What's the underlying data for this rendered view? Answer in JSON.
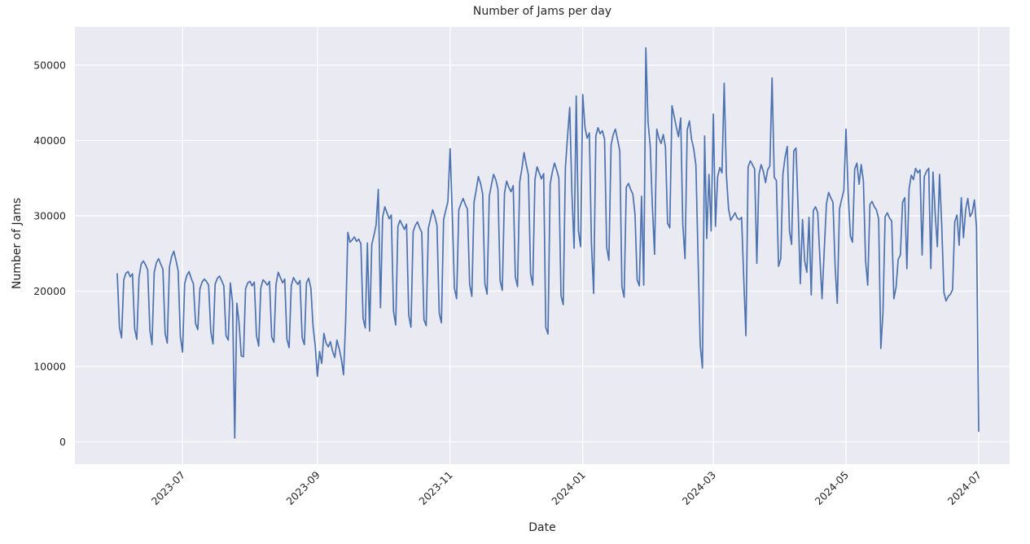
{
  "title": "Number of Jams per day",
  "xlabel": "Date",
  "ylabel": "Number of Jams",
  "chart_data": {
    "type": "line",
    "title": "Number of Jams per day",
    "xlabel": "Date",
    "ylabel": "Number of Jams",
    "legend": "none",
    "grid": "on",
    "style": {
      "line_color": "#4c72b0",
      "plot_bg": "#eaeaf2",
      "grid_color": "#ffffff",
      "text_color": "#262626"
    },
    "ylim": [
      -3000,
      55100
    ],
    "y_ticks": [
      0,
      10000,
      20000,
      30000,
      40000,
      50000
    ],
    "x_ticks": [
      {
        "label": "2023-07",
        "day": 30
      },
      {
        "label": "2023-09",
        "day": 92
      },
      {
        "label": "2023-11",
        "day": 153
      },
      {
        "label": "2024-01",
        "day": 214
      },
      {
        "label": "2024-03",
        "day": 274
      },
      {
        "label": "2024-05",
        "day": 335
      },
      {
        "label": "2024-07",
        "day": 396
      }
    ],
    "series": [
      {
        "name": "jams_per_day",
        "start_date": "2023-06-01",
        "end_date": "2024-07-01",
        "frequency": "daily",
        "values": [
          22300,
          15200,
          13800,
          21500,
          22400,
          22600,
          21900,
          22300,
          15000,
          13600,
          21800,
          23600,
          24000,
          23500,
          22800,
          14800,
          12900,
          22500,
          23800,
          24300,
          23600,
          22900,
          14400,
          13100,
          23200,
          24600,
          25300,
          24100,
          22700,
          14000,
          11900,
          21000,
          22100,
          22600,
          21700,
          21000,
          15700,
          14900,
          20300,
          21200,
          21600,
          21300,
          20800,
          14600,
          13000,
          20900,
          21700,
          22000,
          21400,
          20700,
          14100,
          13500,
          21100,
          18500,
          500,
          18400,
          15800,
          11400,
          11300,
          20300,
          21100,
          21300,
          20700,
          21200,
          14100,
          12700,
          20400,
          21500,
          21200,
          20800,
          21300,
          13900,
          13200,
          20900,
          22500,
          21800,
          21100,
          21600,
          13600,
          12500,
          20700,
          21800,
          21300,
          20900,
          21400,
          13800,
          12900,
          21100,
          21700,
          20400,
          15300,
          12800,
          8700,
          12000,
          10400,
          14400,
          13100,
          12600,
          13300,
          12000,
          11200,
          13500,
          12400,
          11000,
          8900,
          16000,
          27800,
          26500,
          26800,
          27200,
          26600,
          26900,
          26300,
          16400,
          15100,
          26400,
          14700,
          26200,
          27400,
          28800,
          33500,
          17800,
          29800,
          31200,
          30400,
          29600,
          30100,
          17300,
          15500,
          28600,
          29400,
          28800,
          28200,
          28900,
          16800,
          15200,
          27900,
          28700,
          29200,
          28400,
          27800,
          16200,
          15400,
          28300,
          29600,
          30800,
          29900,
          28700,
          17100,
          15800,
          29500,
          30700,
          31900,
          38900,
          30500,
          20400,
          19000,
          30800,
          31600,
          32300,
          31500,
          30900,
          20900,
          19300,
          31800,
          33400,
          35200,
          34300,
          32900,
          21000,
          19600,
          32600,
          34100,
          35500,
          34800,
          33500,
          21400,
          20100,
          33000,
          34600,
          33800,
          33200,
          34000,
          21900,
          20600,
          34500,
          36200,
          38400,
          36800,
          35400,
          22300,
          20800,
          34800,
          36500,
          35700,
          34900,
          35600,
          15200,
          14300,
          34200,
          35800,
          37000,
          36100,
          35000,
          19400,
          18200,
          36400,
          40500,
          44400,
          33000,
          25700,
          45900,
          28000,
          25900,
          46100,
          41800,
          40300,
          41000,
          26300,
          19700,
          40600,
          41700,
          40900,
          41300,
          40200,
          25800,
          24100,
          39400,
          40800,
          41500,
          40100,
          38600,
          20600,
          19200,
          33800,
          34300,
          33500,
          32900,
          30200,
          21500,
          20700,
          32600,
          20800,
          52300,
          42500,
          39200,
          31300,
          24900,
          41500,
          40300,
          39600,
          40800,
          39100,
          29000,
          28400,
          44600,
          43200,
          41800,
          40500,
          43000,
          28800,
          24300,
          41400,
          42600,
          40200,
          38900,
          36700,
          24600,
          12800,
          9800,
          40600,
          27000,
          35500,
          28000,
          43500,
          28600,
          35200,
          36400,
          35700,
          47600,
          35500,
          30900,
          29400,
          29900,
          30400,
          29700,
          29500,
          29800,
          21500,
          14100,
          36500,
          37300,
          36800,
          36200,
          23700,
          35500,
          36800,
          35900,
          34400,
          36100,
          36600,
          48300,
          35100,
          34700,
          23300,
          24300,
          35500,
          37800,
          39200,
          28000,
          26200,
          38600,
          39000,
          31000,
          21000,
          29500,
          24000,
          22500,
          29800,
          19500,
          30700,
          31200,
          30400,
          24300,
          19000,
          25400,
          31600,
          33100,
          32400,
          31800,
          23200,
          18400,
          30900,
          32200,
          33400,
          41500,
          33000,
          27300,
          26500,
          36200,
          37000,
          34200,
          36800,
          34600,
          24000,
          20800,
          31500,
          31900,
          31200,
          30800,
          29600,
          12400,
          17200,
          29900,
          30400,
          29700,
          29300,
          19000,
          20500,
          24200,
          24800,
          31800,
          32400,
          23000,
          33600,
          35400,
          34800,
          36300,
          35700,
          36100,
          24800,
          35200,
          35900,
          36300,
          23000,
          35800,
          30200,
          25900,
          35500,
          28700,
          19800,
          18700,
          19300,
          19600,
          20200,
          29200,
          30100,
          26100,
          32400,
          27100,
          30800,
          32300,
          29900,
          30400,
          32100,
          28500,
          1400
        ]
      }
    ]
  }
}
